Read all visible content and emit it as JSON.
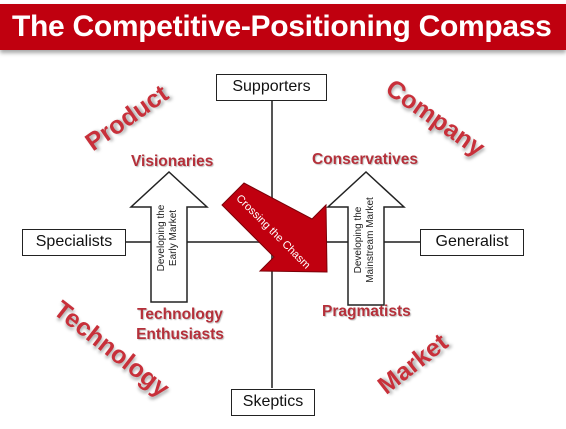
{
  "title": "The Competitive-Positioning Compass",
  "axes": {
    "top": "Supporters",
    "bottom": "Skeptics",
    "left": "Specialists",
    "right": "Generalist"
  },
  "quadrant_labels": {
    "top_left": "Product",
    "top_right": "Company",
    "bottom_left": "Technology",
    "bottom_right": "Market"
  },
  "segments": {
    "visionaries": "Visionaries",
    "conservatives": "Conservatives",
    "tech_line1": "Technology",
    "tech_line2": "Enthusiasts",
    "pragmatists": "Pragmatists"
  },
  "arrows": {
    "left_line1": "Developing the",
    "left_line2": "Early Market",
    "right_line1": "Developing the",
    "right_line2": "Mainstream Market",
    "chasm": "Crossing the Chasm"
  },
  "colors": {
    "title_bar": "#c0000f",
    "accent_text": "#b5303a",
    "chasm_arrow": "#c0000f"
  }
}
